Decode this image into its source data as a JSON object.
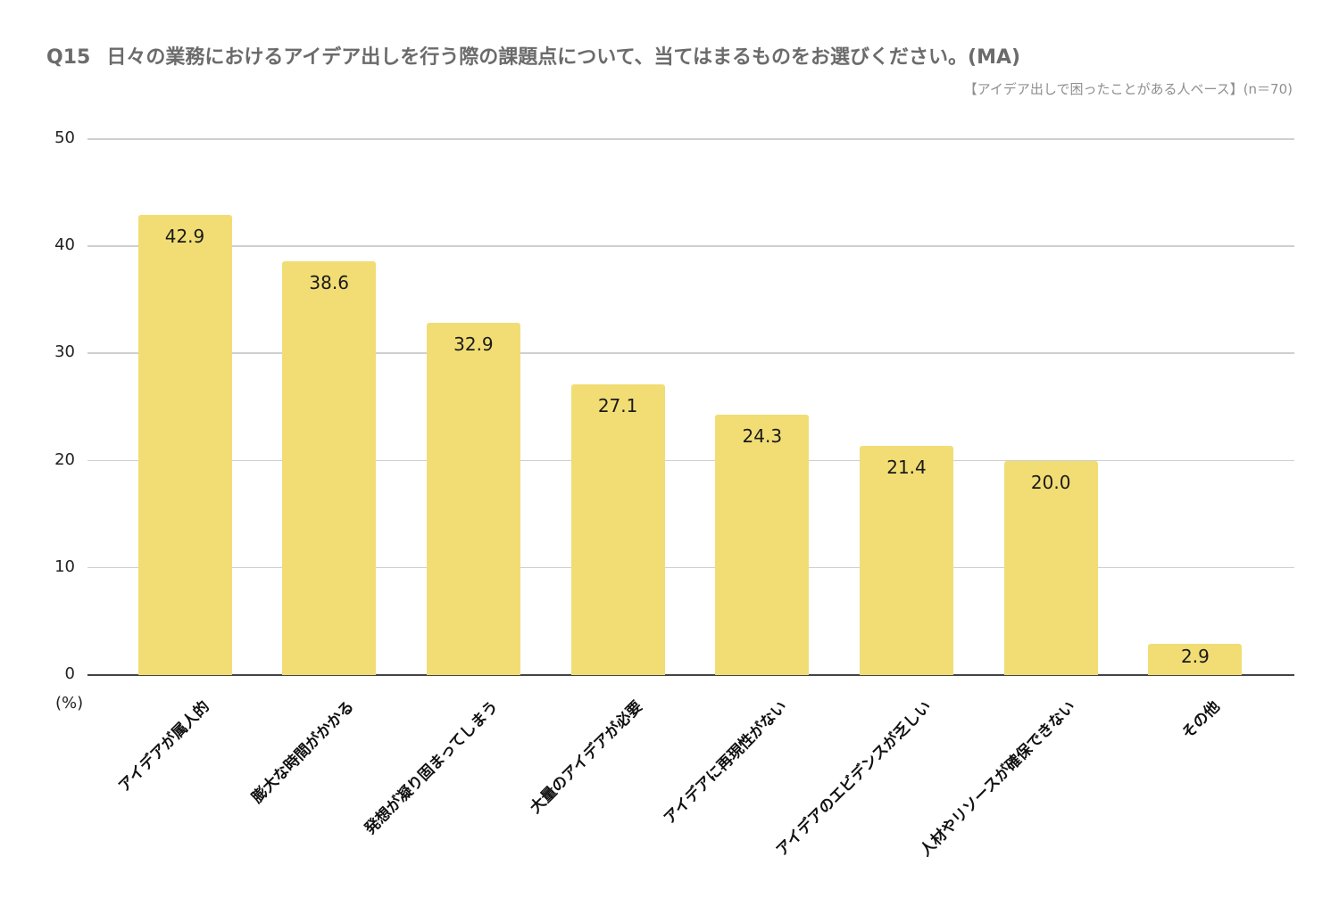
{
  "chart_data": {
    "type": "bar",
    "title": "Q15　日々の業務におけるアイデア出しを行う際の課題点について、当てはまるものをお選びください。(MA)",
    "question_number": "Q15",
    "question_text": "日々の業務におけるアイデア出しを行う際の課題点について、当てはまるものをお選びください。(MA)",
    "subtitle": "【アイデア出しで困ったことがある人ベース】(n＝70)",
    "xlabel": "",
    "ylabel": "(%)",
    "ylim": [
      0,
      50
    ],
    "yticks": [
      "0",
      "10",
      "20",
      "30",
      "40",
      "50"
    ],
    "grid": true,
    "legend": null,
    "bar_color": "#f1dd74",
    "categories": [
      "アイデアが属人的",
      "膨大な時間がかかる",
      "発想が凝り固まってしまう",
      "大量のアイデアが必要",
      "アイデアに再現性がない",
      "アイデアのエビデンスが乏しい",
      "人材やリソースが確保できない",
      "その他"
    ],
    "values": [
      42.9,
      38.6,
      32.9,
      27.1,
      24.3,
      21.4,
      20.0,
      2.9
    ],
    "value_labels": [
      "42.9",
      "38.6",
      "32.9",
      "27.1",
      "24.3",
      "21.4",
      "20.0",
      "2.9"
    ]
  }
}
